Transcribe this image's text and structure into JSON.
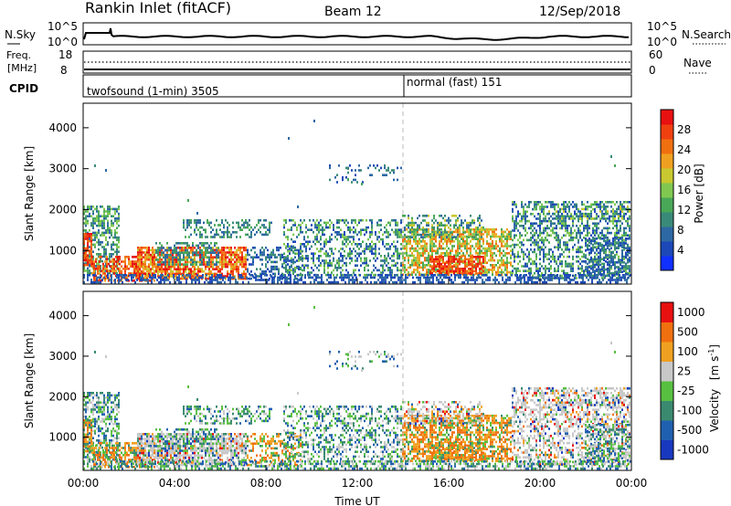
{
  "header": {
    "station": "Rankin Inlet (fitACF)",
    "beam": "Beam 12",
    "date": "12/Sep/2018"
  },
  "strips": {
    "nsky_label": "N.Sky",
    "nsky_ticks": [
      "10^5",
      "10^0"
    ],
    "nsearch_label": "N.Search",
    "nsearch_ticks": [
      "10^5",
      "10^0"
    ],
    "freq_label_line1": "Freq.",
    "freq_label_line2": "[MHz]",
    "freq_ticks": [
      "18",
      "8"
    ],
    "nave_label": "Nave",
    "nave_ticks": [
      "60",
      "0"
    ],
    "cpid_label": "CPID",
    "cpid_modes": [
      "twofsound (1-min) 3505",
      "normal (fast) 151"
    ]
  },
  "chart_data": [
    {
      "type": "heatmap",
      "name": "power-panel",
      "ylabel": "Slant Range [km]",
      "xlabel": "",
      "x_ticks": [
        "00:00",
        "04:00",
        "08:00",
        "12:00",
        "16:00",
        "20:00",
        "00:00"
      ],
      "y_ticks": [
        1000,
        2000,
        3000,
        4000
      ],
      "ylim": [
        180,
        4600
      ],
      "colorbar": {
        "label": "Power [dB]",
        "ticks": [
          4,
          8,
          12,
          16,
          20,
          24,
          28
        ],
        "range": [
          0,
          32
        ],
        "colors": [
          "#1030ff",
          "#1c48b8",
          "#2e68a4",
          "#3a8a78",
          "#48a858",
          "#80c850",
          "#c8c830",
          "#f0a020",
          "#f07010",
          "#f04010",
          "#e81010"
        ]
      }
    },
    {
      "type": "heatmap",
      "name": "velocity-panel",
      "ylabel": "Slant Range [km]",
      "xlabel": "Time UT",
      "x_ticks": [
        "00:00",
        "04:00",
        "08:00",
        "12:00",
        "16:00",
        "20:00",
        "00:00"
      ],
      "y_ticks": [
        1000,
        2000,
        3000,
        4000
      ],
      "ylim": [
        180,
        4600
      ],
      "colorbar": {
        "label_main": "Velocity",
        "label_unit": "[m s",
        "label_exp": "-1",
        "label_close": "]",
        "ticks": [
          "1000",
          "500",
          "100",
          "25",
          "-25",
          "-100",
          "-500",
          "-1000"
        ],
        "colors": [
          "#1838c0",
          "#2060b0",
          "#3a8a70",
          "#58c040",
          "#c8c8c8",
          "#f0a020",
          "#f07010",
          "#e81010"
        ]
      }
    }
  ],
  "colors": {
    "gridline": "#bbbbbb",
    "ground_scatter": "#c8c8c8"
  }
}
